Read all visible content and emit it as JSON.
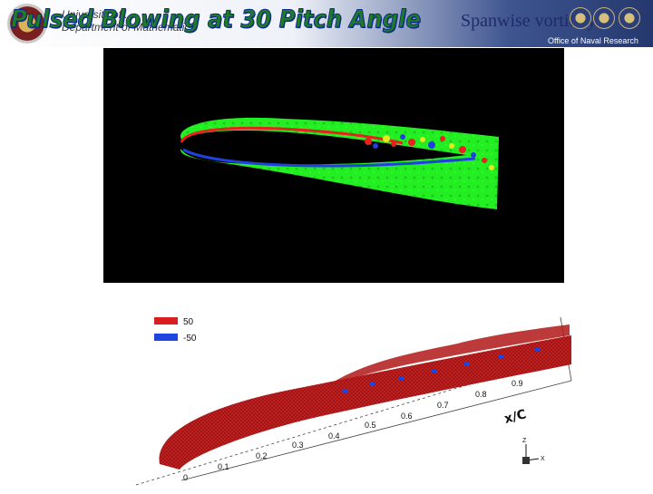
{
  "header": {
    "department_line1": "University of ...",
    "department_line2": "Department of Mathematics",
    "title": "Pulsed Blowing at 30 Pitch Angle",
    "subtitle": "Spanwise vorticity",
    "sponsor": "Office of Naval Research",
    "colors": {
      "title_fill": "#1f7a2a",
      "title_outline": "#0c2a8a",
      "subtitle": "#1f2a6b"
    }
  },
  "top_panel": {
    "description_colors": {
      "background": "#000000",
      "field": "#22ee22",
      "positive": "#e82020",
      "negative": "#2040e0"
    }
  },
  "bottom_panel": {
    "legend": [
      {
        "label": "50",
        "color": "#d81e1e"
      },
      {
        "label": "-50",
        "color": "#2044e0"
      }
    ],
    "axis_title": "x/C",
    "axis_ticks": [
      "0",
      "0.1",
      "0.2",
      "0.3",
      "0.4",
      "0.5",
      "0.6",
      "0.7",
      "0.8",
      "0.9"
    ],
    "axis_labels": {
      "z": "Z",
      "x": "X"
    }
  }
}
